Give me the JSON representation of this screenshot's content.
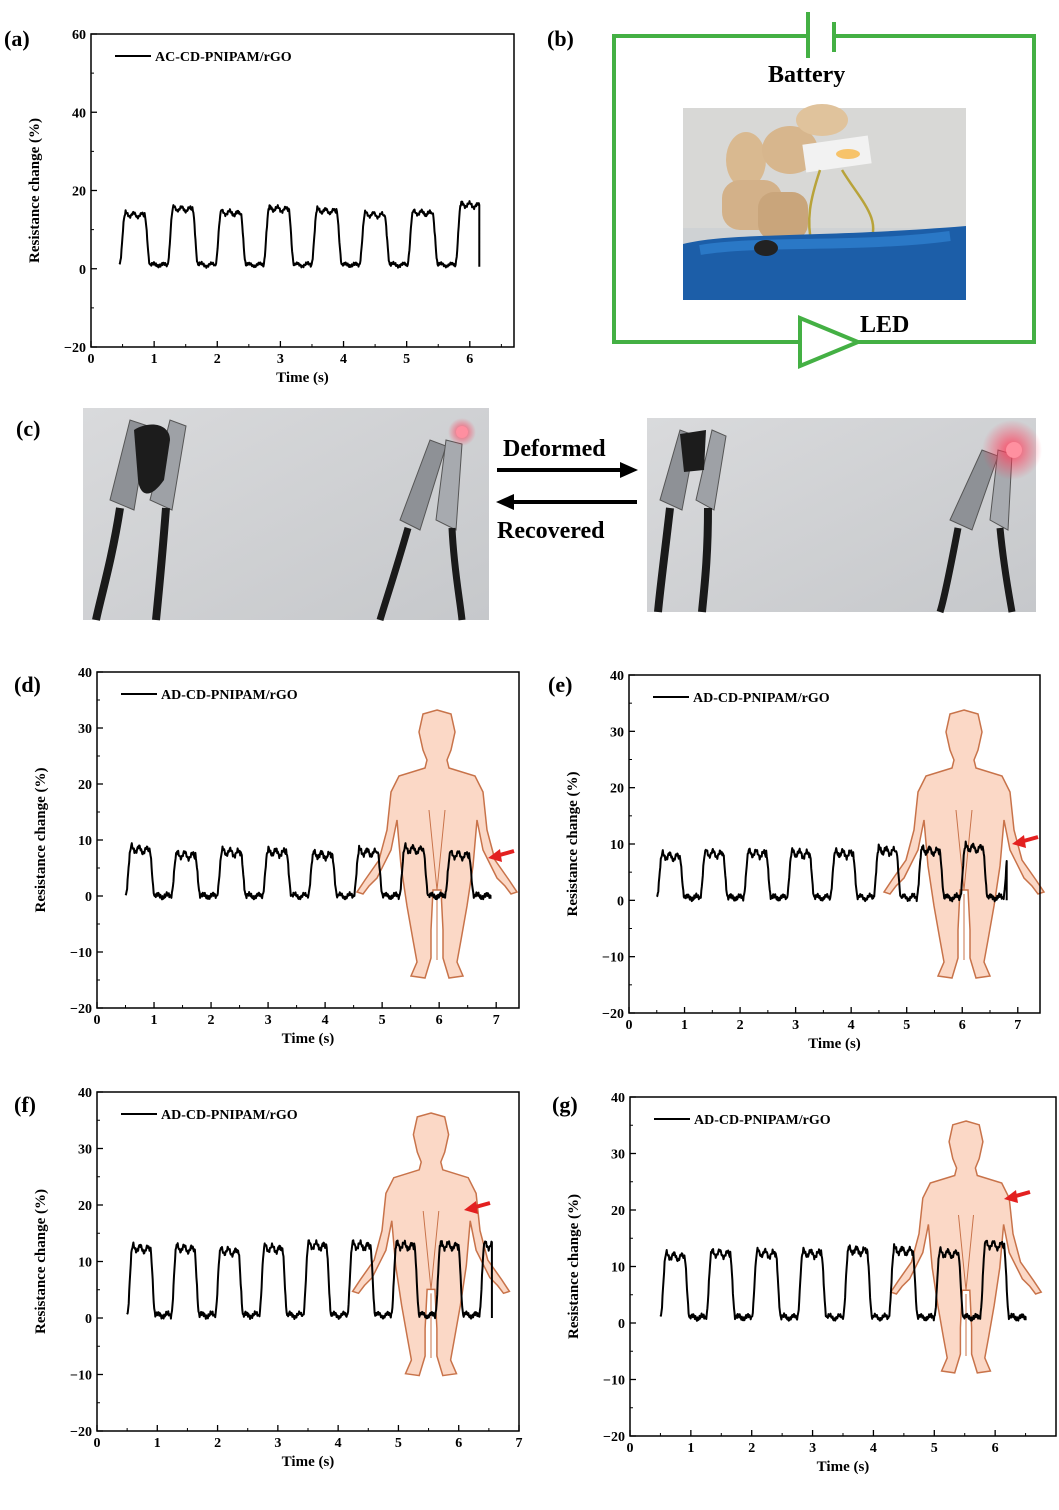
{
  "panel_labels": {
    "a": "(a)",
    "b": "(b)",
    "c": "(c)",
    "d": "(d)",
    "e": "(e)",
    "f": "(f)",
    "g": "(g)"
  },
  "circuit": {
    "battery_label": "Battery",
    "led_label": "LED",
    "wire_color": "#44b044"
  },
  "switching": {
    "deformed_label": "Deformed",
    "recovered_label": "Recovered"
  },
  "colors": {
    "line": "#000000",
    "body_fill": "#fbd8c6",
    "body_stroke": "#c8734a",
    "arrow": "#e32020"
  },
  "chart_data": [
    {
      "id": "a",
      "type": "line",
      "xlabel": "Time (s)",
      "ylabel": "Resistance change (%)",
      "xlim": [
        0,
        6.7
      ],
      "ylim": [
        -20,
        60
      ],
      "xticks": [
        0,
        1,
        2,
        3,
        4,
        5,
        6
      ],
      "yticks": [
        -20,
        0,
        20,
        40,
        60
      ],
      "series": [
        {
          "name": "AC-CD-PNIPAM/rGO",
          "start": 0.45,
          "end": 6.15,
          "period": 0.76,
          "peaks": [
            14,
            15.5,
            14.5,
            15.5,
            15,
            14,
            14.5,
            16.5
          ],
          "baseline": 1
        }
      ],
      "legend": "top-left",
      "human_marker": "none"
    },
    {
      "id": "d",
      "type": "line",
      "xlabel": "Time (s)",
      "ylabel": "Resistance change (%)",
      "xlim": [
        0,
        7.4
      ],
      "ylim": [
        -20,
        40
      ],
      "xticks": [
        0,
        1,
        2,
        3,
        4,
        5,
        6,
        7
      ],
      "yticks": [
        -20,
        -10,
        0,
        10,
        20,
        30,
        40
      ],
      "series": [
        {
          "name": "AD-CD-PNIPAM/rGO",
          "start": 0.5,
          "end": 6.9,
          "period": 0.8,
          "peaks": [
            8.5,
            7.5,
            8,
            8,
            7.5,
            8,
            8.5,
            7.5
          ],
          "baseline": 0
        }
      ],
      "legend": "top-left",
      "human_marker": "finger"
    },
    {
      "id": "e",
      "type": "line",
      "xlabel": "Time (s)",
      "ylabel": "Resistance change (%)",
      "xlim": [
        0,
        7.4
      ],
      "ylim": [
        -20,
        40
      ],
      "xticks": [
        0,
        1,
        2,
        3,
        4,
        5,
        6,
        7
      ],
      "yticks": [
        -20,
        -10,
        0,
        10,
        20,
        30,
        40
      ],
      "series": [
        {
          "name": "AD-CD-PNIPAM/rGO",
          "start": 0.5,
          "end": 6.8,
          "period": 0.78,
          "peaks": [
            8,
            8.5,
            8.5,
            8.5,
            8.5,
            9,
            9,
            9.5
          ],
          "baseline": 0.5
        }
      ],
      "legend": "top-left",
      "human_marker": "finger"
    },
    {
      "id": "f",
      "type": "line",
      "xlabel": "Time (s)",
      "ylabel": "Resistance change (%)",
      "xlim": [
        0,
        7
      ],
      "ylim": [
        -20,
        40
      ],
      "xticks": [
        0,
        1,
        2,
        3,
        4,
        5,
        6,
        7
      ],
      "yticks": [
        -20,
        -10,
        0,
        10,
        20,
        30,
        40
      ],
      "series": [
        {
          "name": "AD-CD-PNIPAM/rGO",
          "start": 0.5,
          "end": 6.55,
          "period": 0.73,
          "peaks": [
            12.5,
            12.5,
            12,
            12.5,
            13,
            13,
            13,
            13
          ],
          "baseline": 0.5
        }
      ],
      "legend": "top-left",
      "human_marker": "elbow"
    },
    {
      "id": "g",
      "type": "line",
      "xlabel": "Time (s)",
      "ylabel": "Resistance change (%)",
      "xlim": [
        0,
        7
      ],
      "ylim": [
        -20,
        40
      ],
      "xticks": [
        0,
        1,
        2,
        3,
        4,
        5,
        6
      ],
      "yticks": [
        -20,
        -10,
        0,
        10,
        20,
        30,
        40
      ],
      "series": [
        {
          "name": "AD-CD-PNIPAM/rGO",
          "start": 0.5,
          "end": 6.5,
          "period": 0.75,
          "peaks": [
            12,
            12.5,
            12.5,
            12.5,
            13,
            13,
            12.5,
            14
          ],
          "baseline": 1
        }
      ],
      "legend": "top-left",
      "human_marker": "elbow"
    }
  ]
}
